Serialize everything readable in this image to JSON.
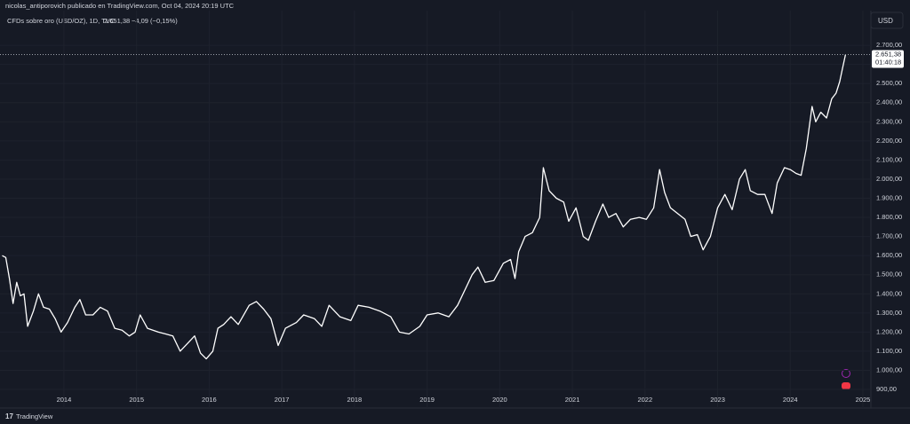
{
  "header": "nicolas_antiporovich publicado en TradingView.com, Oct 04, 2024 20:19 UTC",
  "footer": "TradingView",
  "chart_data": {
    "type": "line",
    "symbol": "CFDs sobre oro (USD/OZ), 1D, TVC",
    "change": "−4,09 (−0,15%)",
    "currency": "USD",
    "last_price": {
      "value": 2651.38,
      "label": "2.651,38"
    },
    "countdown": "01:40:18",
    "color": "#ffffff",
    "grid": true,
    "x": [
      2013.15,
      2013.2,
      2013.25,
      2013.3,
      2013.35,
      2013.4,
      2013.45,
      2013.5,
      2013.58,
      2013.65,
      2013.72,
      2013.8,
      2013.88,
      2013.96,
      2014.05,
      2014.15,
      2014.22,
      2014.3,
      2014.4,
      2014.5,
      2014.6,
      2014.7,
      2014.8,
      2014.9,
      2014.98,
      2015.05,
      2015.15,
      2015.3,
      2015.4,
      2015.5,
      2015.6,
      2015.7,
      2015.8,
      2015.88,
      2015.96,
      2016.05,
      2016.12,
      2016.2,
      2016.3,
      2016.4,
      2016.55,
      2016.65,
      2016.75,
      2016.85,
      2016.95,
      2017.05,
      2017.2,
      2017.3,
      2017.45,
      2017.55,
      2017.65,
      2017.8,
      2017.95,
      2018.05,
      2018.2,
      2018.35,
      2018.5,
      2018.62,
      2018.75,
      2018.9,
      2019.0,
      2019.15,
      2019.3,
      2019.42,
      2019.52,
      2019.62,
      2019.7,
      2019.8,
      2019.92,
      2020.05,
      2020.15,
      2020.21,
      2020.26,
      2020.35,
      2020.45,
      2020.55,
      2020.6,
      2020.68,
      2020.78,
      2020.88,
      2020.95,
      2021.05,
      2021.15,
      2021.22,
      2021.32,
      2021.42,
      2021.5,
      2021.6,
      2021.7,
      2021.8,
      2021.92,
      2022.02,
      2022.12,
      2022.2,
      2022.27,
      2022.35,
      2022.45,
      2022.55,
      2022.63,
      2022.72,
      2022.8,
      2022.9,
      2023.0,
      2023.1,
      2023.2,
      2023.3,
      2023.38,
      2023.45,
      2023.55,
      2023.65,
      2023.75,
      2023.82,
      2023.92,
      2024.0,
      2024.08,
      2024.15,
      2024.22,
      2024.3,
      2024.35,
      2024.42,
      2024.5,
      2024.57,
      2024.63,
      2024.68,
      2024.72,
      2024.76
    ],
    "values": [
      1600,
      1590,
      1480,
      1350,
      1460,
      1390,
      1400,
      1230,
      1310,
      1400,
      1330,
      1320,
      1270,
      1200,
      1250,
      1330,
      1370,
      1290,
      1290,
      1330,
      1310,
      1220,
      1210,
      1180,
      1200,
      1290,
      1220,
      1200,
      1190,
      1180,
      1100,
      1140,
      1180,
      1090,
      1060,
      1100,
      1220,
      1240,
      1280,
      1240,
      1340,
      1360,
      1320,
      1270,
      1130,
      1220,
      1250,
      1290,
      1270,
      1230,
      1340,
      1280,
      1260,
      1340,
      1330,
      1310,
      1280,
      1200,
      1190,
      1230,
      1290,
      1300,
      1280,
      1340,
      1420,
      1500,
      1540,
      1460,
      1470,
      1560,
      1580,
      1480,
      1620,
      1700,
      1720,
      1800,
      2060,
      1940,
      1900,
      1880,
      1780,
      1850,
      1700,
      1680,
      1780,
      1870,
      1800,
      1820,
      1750,
      1790,
      1800,
      1790,
      1850,
      2050,
      1930,
      1850,
      1820,
      1790,
      1700,
      1710,
      1630,
      1700,
      1850,
      1920,
      1840,
      2000,
      2050,
      1940,
      1920,
      1920,
      1820,
      1980,
      2060,
      2050,
      2030,
      2020,
      2160,
      2380,
      2300,
      2350,
      2320,
      2420,
      2450,
      2510,
      2580,
      2651.38
    ],
    "xlim": [
      2013.12,
      2025.11
    ],
    "ylim": [
      877,
      2872
    ],
    "xticks": [
      2014,
      2015,
      2016,
      2017,
      2018,
      2019,
      2020,
      2021,
      2022,
      2023,
      2024,
      2025
    ],
    "yticks": [
      {
        "value": 900,
        "label": "900,00"
      },
      {
        "value": 1000,
        "label": "1.000,00"
      },
      {
        "value": 1100,
        "label": "1.100,00"
      },
      {
        "value": 1200,
        "label": "1.200,00"
      },
      {
        "value": 1300,
        "label": "1.300,00"
      },
      {
        "value": 1400,
        "label": "1.400,00"
      },
      {
        "value": 1500,
        "label": "1.500,00"
      },
      {
        "value": 1600,
        "label": "1.600,00"
      },
      {
        "value": 1700,
        "label": "1.700,00"
      },
      {
        "value": 1800,
        "label": "1.800,00"
      },
      {
        "value": 1900,
        "label": "1.900,00"
      },
      {
        "value": 2000,
        "label": "2.000,00"
      },
      {
        "value": 2100,
        "label": "2.100,00"
      },
      {
        "value": 2200,
        "label": "2.200,00"
      },
      {
        "value": 2300,
        "label": "2.300,00"
      },
      {
        "value": 2400,
        "label": "2.400,00"
      },
      {
        "value": 2500,
        "label": "2.500,00"
      },
      {
        "value": 2600,
        "label": "2.600,00"
      },
      {
        "value": 2700,
        "label": "2.700,00"
      }
    ]
  }
}
